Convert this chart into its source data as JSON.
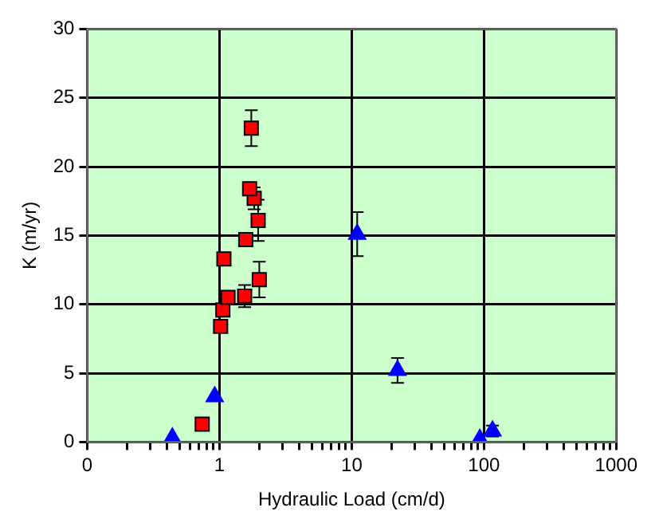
{
  "chart_data": {
    "type": "scatter",
    "xlabel": "Hydraulic Load (cm/d)",
    "ylabel": "K (m/yr)",
    "log": "x",
    "xlim": [
      0.1,
      1000
    ],
    "xticks": [
      {
        "value": 0.1,
        "label": "0"
      },
      {
        "value": 0.2,
        "label": null
      },
      {
        "value": 0.3,
        "label": null
      },
      {
        "value": 0.4,
        "label": null
      },
      {
        "value": 0.5,
        "label": null
      },
      {
        "value": 0.6,
        "label": null
      },
      {
        "value": 0.7,
        "label": null
      },
      {
        "value": 0.8,
        "label": null
      },
      {
        "value": 0.9,
        "label": null
      },
      1,
      {
        "value": 2,
        "label": null
      },
      {
        "value": 3,
        "label": null
      },
      {
        "value": 4,
        "label": null
      },
      {
        "value": 5,
        "label": null
      },
      {
        "value": 6,
        "label": null
      },
      {
        "value": 7,
        "label": null
      },
      {
        "value": 8,
        "label": null
      },
      {
        "value": 9,
        "label": null
      },
      10,
      {
        "value": 20,
        "label": null
      },
      {
        "value": 30,
        "label": null
      },
      {
        "value": 40,
        "label": null
      },
      {
        "value": 50,
        "label": null
      },
      {
        "value": 60,
        "label": null
      },
      {
        "value": 70,
        "label": null
      },
      {
        "value": 80,
        "label": null
      },
      {
        "value": 90,
        "label": null
      },
      100,
      {
        "value": 200,
        "label": null
      },
      {
        "value": 300,
        "label": null
      },
      {
        "value": 400,
        "label": null
      },
      {
        "value": 500,
        "label": null
      },
      {
        "value": 600,
        "label": null
      },
      {
        "value": 700,
        "label": null
      },
      {
        "value": 800,
        "label": null
      },
      {
        "value": 900,
        "label": null
      },
      1000
    ],
    "ylim": [
      0,
      30
    ],
    "yticks": [
      0,
      5,
      10,
      15,
      20,
      25,
      30
    ],
    "grid": true,
    "legend": false,
    "series": [
      {
        "color": "#ff0000",
        "marker": "square",
        "x": [
          0.74,
          1.02,
          1.06,
          1.16,
          1.08,
          1.55,
          1.58,
          2.0,
          1.96,
          1.83,
          1.69,
          1.74
        ],
        "values": [
          1.3,
          8.4,
          9.6,
          10.5,
          13.3,
          10.6,
          14.7,
          11.8,
          16.1,
          17.7,
          18.4,
          22.8
        ],
        "errors": [
          null,
          null,
          null,
          null,
          null,
          0.8,
          null,
          1.3,
          1.5,
          0.8,
          null,
          1.3
        ]
      },
      {
        "color": "#0000ff",
        "marker": "triangle",
        "x": [
          0.44,
          0.92,
          11.0,
          22.2,
          93,
          116
        ],
        "values": [
          0.3,
          3.3,
          15.1,
          5.2,
          0.2,
          0.8
        ],
        "errors": [
          null,
          null,
          1.6,
          0.9,
          null,
          0.4
        ]
      }
    ]
  }
}
